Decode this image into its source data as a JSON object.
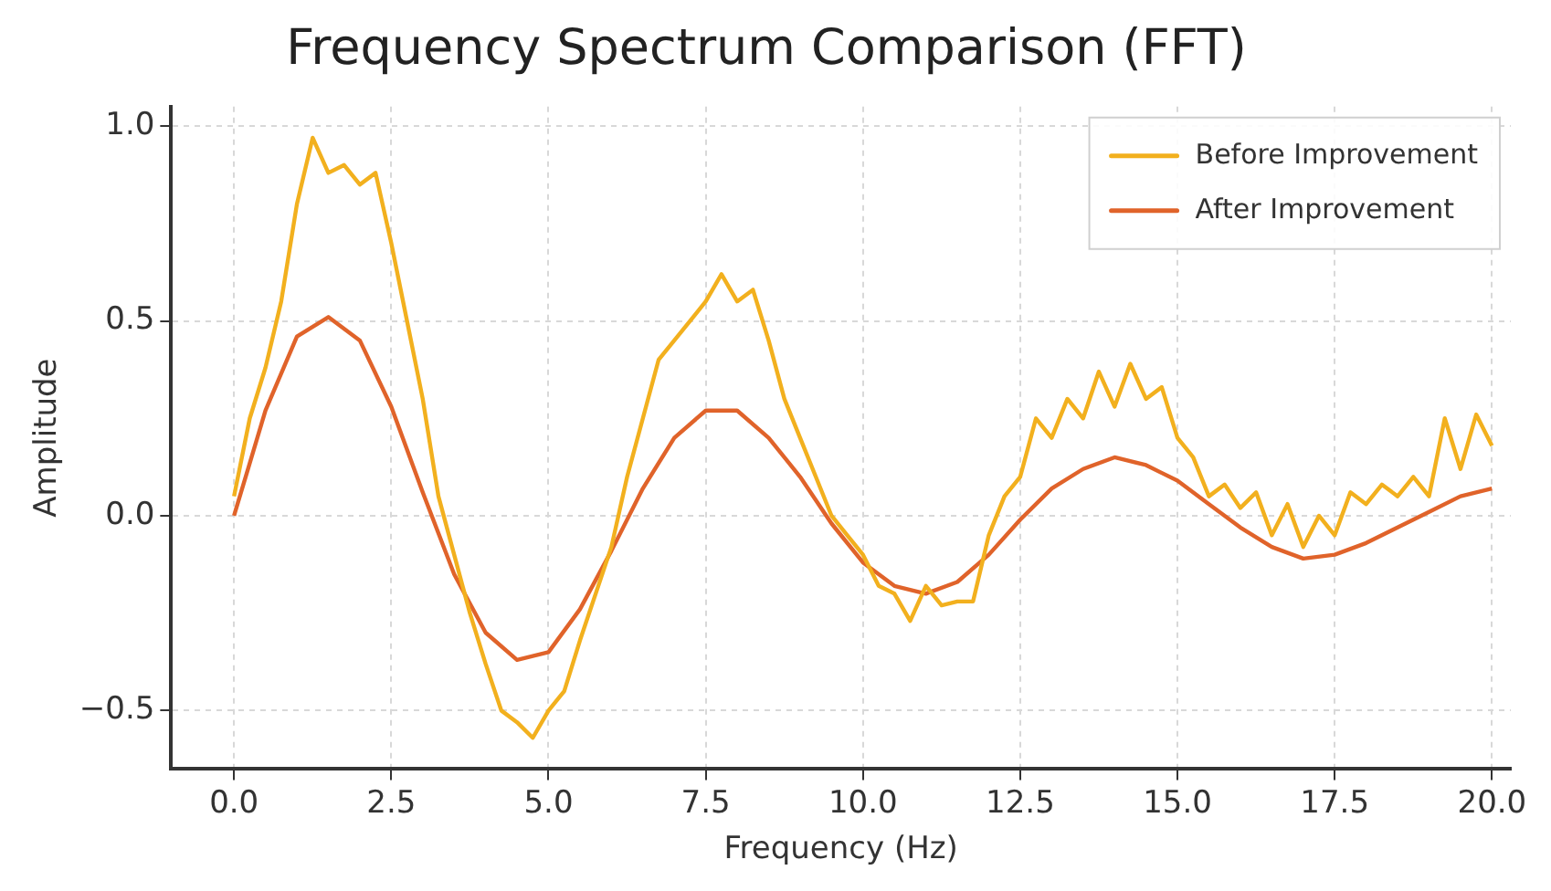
{
  "chart_data": {
    "type": "line",
    "title": "Frequency Spectrum Comparison (FFT)",
    "xlabel": "Frequency (Hz)",
    "ylabel": "Amplitude",
    "xlim": [
      -1,
      20.3
    ],
    "xticks": [
      {
        "value": 0,
        "label": "0.0"
      },
      {
        "value": 2.5,
        "label": "2.5"
      },
      {
        "value": 5,
        "label": "5.0"
      },
      {
        "value": 7.5,
        "label": "7.5"
      },
      {
        "value": 10,
        "label": "10.0"
      },
      {
        "value": 12.5,
        "label": "12.5"
      },
      {
        "value": 15,
        "label": "15.0"
      },
      {
        "value": 17.5,
        "label": "17.5"
      },
      {
        "value": 20,
        "label": "20.0"
      }
    ],
    "ylim": [
      -0.65,
      1.05
    ],
    "yticks": [
      {
        "value": -0.5,
        "label": "−0.5"
      },
      {
        "value": 0,
        "label": "0.0"
      },
      {
        "value": 0.5,
        "label": "0.5"
      },
      {
        "value": 1,
        "label": "1.0"
      }
    ],
    "grid": true,
    "legend": "top right",
    "marker": "none",
    "line_style": "solid",
    "series": [
      {
        "name": "Before Improvement",
        "color": "#f2b01e",
        "x": [
          0,
          0.25,
          0.5,
          0.75,
          1,
          1.25,
          1.5,
          1.75,
          2,
          2.25,
          2.5,
          2.75,
          3,
          3.25,
          3.5,
          3.75,
          4,
          4.25,
          4.5,
          4.75,
          5,
          5.25,
          5.5,
          5.75,
          6,
          6.25,
          6.5,
          6.75,
          7,
          7.25,
          7.5,
          7.75,
          8,
          8.25,
          8.5,
          8.75,
          9,
          9.25,
          9.5,
          9.75,
          10,
          10.25,
          10.5,
          10.75,
          11,
          11.25,
          11.5,
          11.75,
          12,
          12.25,
          12.5,
          12.75,
          13,
          13.25,
          13.5,
          13.75,
          14,
          14.25,
          14.5,
          14.75,
          15,
          15.25,
          15.5,
          15.75,
          16,
          16.25,
          16.5,
          16.75,
          17,
          17.25,
          17.5,
          17.75,
          18,
          18.25,
          18.5,
          18.75,
          19,
          19.25,
          19.5,
          19.75,
          20
        ],
        "values": [
          0.05,
          0.25,
          0.38,
          0.55,
          0.8,
          0.97,
          0.88,
          0.9,
          0.85,
          0.88,
          0.7,
          0.5,
          0.3,
          0.05,
          -0.1,
          -0.25,
          -0.38,
          -0.5,
          -0.53,
          -0.57,
          -0.5,
          -0.45,
          -0.32,
          -0.2,
          -0.08,
          0.1,
          0.25,
          0.4,
          0.45,
          0.5,
          0.55,
          0.62,
          0.55,
          0.58,
          0.45,
          0.3,
          0.2,
          0.1,
          0,
          -0.05,
          -0.1,
          -0.18,
          -0.2,
          -0.27,
          -0.18,
          -0.23,
          -0.22,
          -0.22,
          -0.05,
          0.05,
          0.1,
          0.25,
          0.2,
          0.3,
          0.25,
          0.37,
          0.28,
          0.39,
          0.3,
          0.33,
          0.2,
          0.15,
          0.05,
          0.08,
          0.02,
          0.06,
          -0.05,
          0.03,
          -0.08,
          0,
          -0.05,
          0.06,
          0.03,
          0.08,
          0.05,
          0.1,
          0.05,
          0.25,
          0.12,
          0.26,
          0.18
        ]
      },
      {
        "name": "After Improvement",
        "color": "#e0632a",
        "x": [
          0,
          0.5,
          1,
          1.5,
          2,
          2.5,
          3,
          3.5,
          4,
          4.5,
          5,
          5.5,
          6,
          6.5,
          7,
          7.5,
          8,
          8.5,
          9,
          9.5,
          10,
          10.5,
          11,
          11.5,
          12,
          12.5,
          13,
          13.5,
          14,
          14.5,
          15,
          15.5,
          16,
          16.5,
          17,
          17.5,
          18,
          18.5,
          19,
          19.5,
          20
        ],
        "values": [
          0,
          0.27,
          0.46,
          0.51,
          0.45,
          0.28,
          0.06,
          -0.15,
          -0.3,
          -0.37,
          -0.35,
          -0.24,
          -0.09,
          0.07,
          0.2,
          0.27,
          0.27,
          0.2,
          0.1,
          -0.02,
          -0.12,
          -0.18,
          -0.2,
          -0.17,
          -0.1,
          -0.01,
          0.07,
          0.12,
          0.15,
          0.13,
          0.09,
          0.03,
          -0.03,
          -0.08,
          -0.11,
          -0.1,
          -0.07,
          -0.03,
          0.01,
          0.05,
          0.07
        ]
      }
    ]
  }
}
